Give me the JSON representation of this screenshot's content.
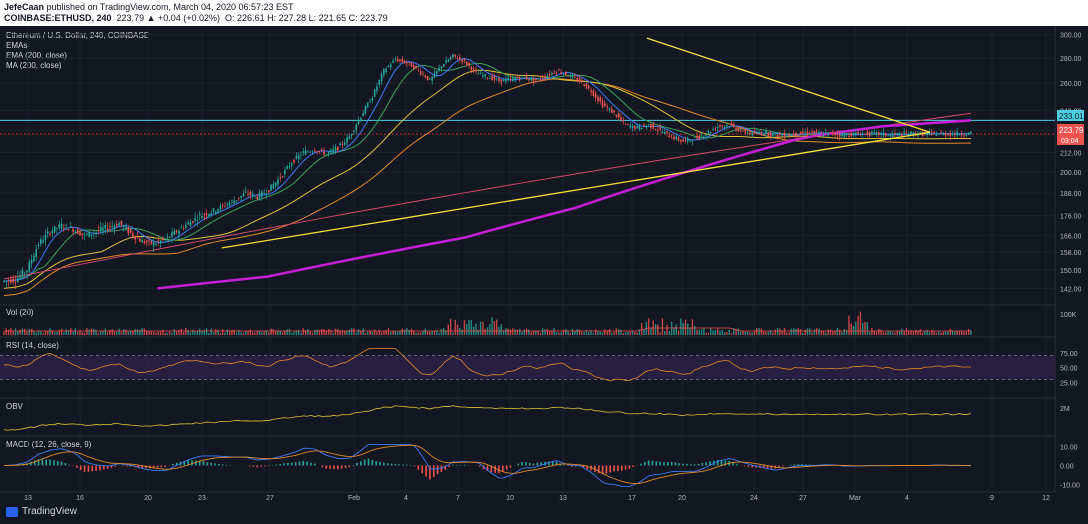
{
  "header": {
    "author": "JefeCaan",
    "published": " published on TradingView.com, March 04, 2020 06:57:23 EST",
    "symbol": "COINBASE:ETHUSD, 240",
    "change": "223.79 ▲ +0.04 (+0.02%)",
    "ohlc": "O: 226.61  H: 227.28  L: 221.65  C: 223.79"
  },
  "legend": {
    "title": "Ethereum / U.S. Dollar, 240, COINBASE",
    "line1": "EMAs",
    "line2": "EMA (200, close)",
    "line3": "MA (200, close)"
  },
  "pane_labels": {
    "vol": "Vol (20)",
    "rsi": "RSI (14, close)",
    "obv": "OBV",
    "macd": "MACD (12, 26, close, 9)"
  },
  "badges": {
    "resistance": "233.01",
    "price": "223.79",
    "countdown": "03:04"
  },
  "footer": {
    "brand": "TradingView"
  },
  "colors": {
    "bg": "#131722",
    "up": "#26a69a",
    "down": "#ef5350",
    "trend": "#f5e23b",
    "ma200": "#c71fd6",
    "ema200": "#d44a6b",
    "resistance": "#4dd0e1",
    "support": "#c62828",
    "grid": "#1e222d"
  },
  "chart_data": [
    {
      "type": "line",
      "title": "Ethereum / U.S. Dollar, 240, COINBASE",
      "x_ticks": [
        "13",
        "16",
        "20",
        "23",
        "27",
        "Feb",
        "4",
        "7",
        "10",
        "13",
        "17",
        "20",
        "24",
        "27",
        "Mar",
        "4",
        "9",
        "12"
      ],
      "y_ticks": [
        142,
        150,
        158,
        166,
        176,
        188,
        200,
        212,
        226,
        240,
        260,
        280,
        300
      ],
      "series": [
        {
          "x": [
            0,
            6,
            12,
            18,
            24,
            30,
            36,
            42,
            48,
            54,
            60,
            66,
            72,
            78,
            84,
            90,
            96,
            102,
            108,
            114,
            120,
            126,
            132,
            138,
            144,
            150,
            156,
            162,
            168,
            174,
            180,
            186,
            192,
            198,
            204,
            210,
            216,
            222,
            228,
            234,
            240,
            246,
            252,
            258,
            264,
            270,
            276,
            282,
            288,
            294,
            300,
            306,
            312,
            318,
            324,
            330,
            336,
            342,
            348,
            354,
            360,
            366,
            372,
            378,
            384,
            390,
            396,
            402,
            408,
            414,
            420,
            426,
            432,
            438,
            444,
            450,
            456,
            462,
            468,
            474,
            480,
            486,
            492,
            498,
            504
          ],
          "values": [
            145,
            146,
            150,
            162,
            168,
            171,
            169,
            166,
            168,
            170,
            172,
            167,
            163,
            162,
            164,
            168,
            172,
            176,
            178,
            181,
            184,
            188,
            186,
            190,
            197,
            206,
            212,
            214,
            211,
            215,
            222,
            236,
            250,
            270,
            279,
            276,
            270,
            262,
            274,
            282,
            277,
            268,
            265,
            262,
            263,
            265,
            262,
            265,
            270,
            266,
            262,
            254,
            244,
            238,
            230,
            228,
            230,
            226,
            222,
            219,
            221,
            224,
            229,
            230,
            226,
            224,
            225,
            223,
            223,
            224,
            225,
            224,
            224,
            223,
            224,
            224,
            224,
            223,
            224,
            224,
            224,
            224,
            224,
            224,
            224
          ]
        }
      ],
      "ma200": [
        142,
        143,
        144,
        145,
        146,
        147,
        149,
        151,
        153,
        155,
        157,
        159,
        161,
        163,
        165,
        168,
        171,
        174,
        177,
        180,
        184,
        188,
        192,
        196,
        200,
        204,
        208,
        212,
        216,
        220,
        223,
        225,
        227,
        229,
        230,
        231,
        232,
        233
      ],
      "resistance_level": 233.01,
      "last_price": 223.79,
      "trendline_upper": {
        "from": [
          236,
          297
        ],
        "to": [
          310,
          225
        ]
      },
      "trendline_lower": {
        "from": [
          80,
          160
        ],
        "to": [
          310,
          225
        ]
      }
    },
    {
      "type": "bar",
      "title": "Vol (20)",
      "y_ticks": [
        "100K"
      ]
    },
    {
      "type": "line",
      "title": "RSI (14, close)",
      "y_ticks": [
        75,
        50,
        25
      ],
      "overbought": 70,
      "oversold": 30
    },
    {
      "type": "line",
      "title": "OBV",
      "y_ticks": [
        "2M"
      ]
    },
    {
      "type": "line",
      "title": "MACD (12, 26, close, 9)",
      "y_ticks": [
        10,
        0,
        -10
      ]
    }
  ]
}
